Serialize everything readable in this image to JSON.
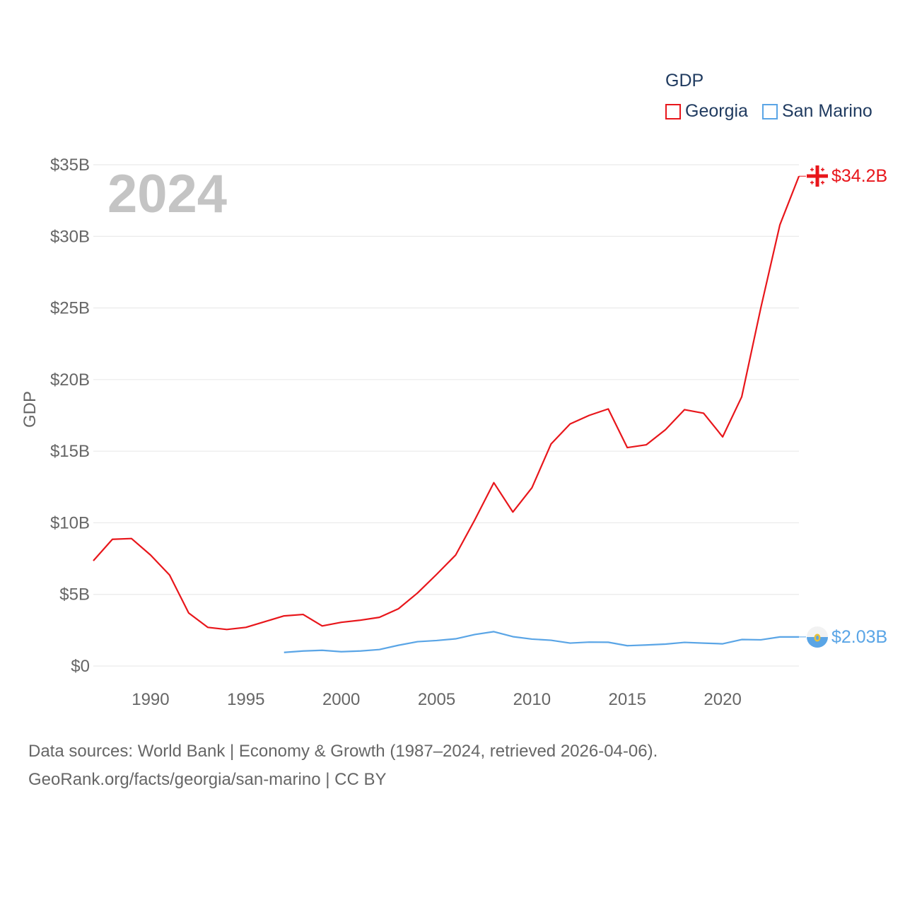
{
  "chart_data": {
    "type": "line",
    "year_label": "2024",
    "ylabel": "GDP",
    "xlabel": "",
    "xlim": [
      1987,
      2024
    ],
    "ylim": [
      0,
      35
    ],
    "x_ticks": [
      "1990",
      "1995",
      "2000",
      "2005",
      "2010",
      "2015",
      "2020"
    ],
    "x_tick_values": [
      1990,
      1995,
      2000,
      2005,
      2010,
      2015,
      2020
    ],
    "y_ticks": [
      "$0",
      "$5B",
      "$10B",
      "$15B",
      "$20B",
      "$25B",
      "$30B",
      "$35B"
    ],
    "y_tick_values": [
      0,
      5,
      10,
      15,
      20,
      25,
      30,
      35
    ],
    "legend_title": "GDP",
    "series": [
      {
        "name": "Georgia",
        "color": "#e8161b",
        "end_label": "$34.2B",
        "x": [
          1987,
          1988,
          1989,
          1990,
          1991,
          1992,
          1993,
          1994,
          1995,
          1996,
          1997,
          1998,
          1999,
          2000,
          2001,
          2002,
          2003,
          2004,
          2005,
          2006,
          2007,
          2008,
          2009,
          2010,
          2011,
          2012,
          2013,
          2014,
          2015,
          2016,
          2017,
          2018,
          2019,
          2020,
          2021,
          2022,
          2023,
          2024
        ],
        "values": [
          7.35,
          8.85,
          8.9,
          7.75,
          6.35,
          3.7,
          2.7,
          2.55,
          2.7,
          3.1,
          3.5,
          3.6,
          2.8,
          3.05,
          3.2,
          3.4,
          4.0,
          5.1,
          6.4,
          7.75,
          10.2,
          12.8,
          10.75,
          12.45,
          15.5,
          16.9,
          17.5,
          17.95,
          15.25,
          15.45,
          16.5,
          17.9,
          17.65,
          16.0,
          18.8,
          25.0,
          30.8,
          34.2
        ]
      },
      {
        "name": "San Marino",
        "color": "#5aa5e6",
        "end_label": "$2.03B",
        "x": [
          1997,
          1998,
          1999,
          2000,
          2001,
          2002,
          2003,
          2004,
          2005,
          2006,
          2007,
          2008,
          2009,
          2010,
          2011,
          2012,
          2013,
          2014,
          2015,
          2016,
          2017,
          2018,
          2019,
          2020,
          2021,
          2022,
          2023,
          2024
        ],
        "values": [
          0.95,
          1.05,
          1.1,
          1.0,
          1.05,
          1.15,
          1.45,
          1.7,
          1.78,
          1.9,
          2.2,
          2.4,
          2.05,
          1.88,
          1.8,
          1.6,
          1.67,
          1.66,
          1.42,
          1.47,
          1.53,
          1.65,
          1.6,
          1.55,
          1.85,
          1.83,
          2.03,
          2.03
        ]
      }
    ]
  },
  "footer": {
    "line1": "Data sources: World Bank | Economy & Growth (1987–2024, retrieved 2026-04-06).",
    "line2": "GeoRank.org/facts/georgia/san-marino | CC BY"
  },
  "colors": {
    "axis_text": "#666666",
    "grid": "#e6e6e6",
    "year_watermark": "#c4c4c4",
    "legend_text": "#1f3a5f"
  }
}
